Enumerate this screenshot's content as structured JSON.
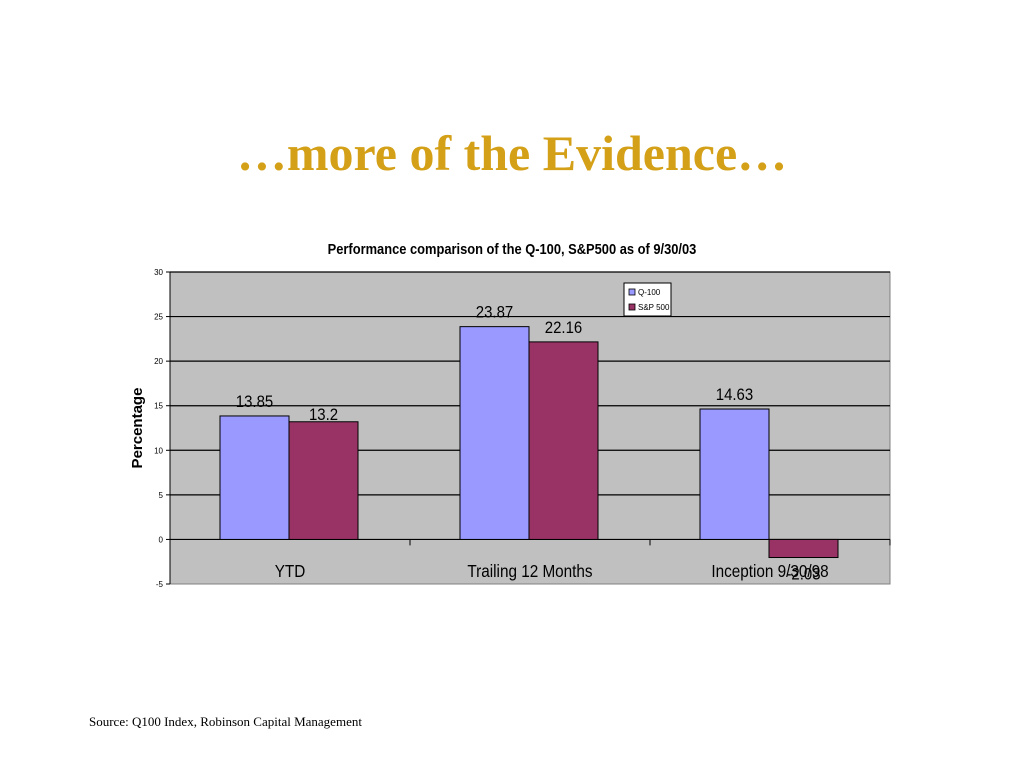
{
  "slide": {
    "title": "…more of the Evidence…",
    "source": "Source: Q100 Index, Robinson Capital Management"
  },
  "colors": {
    "title": "#d4a017",
    "plot_background": "#c0c0c0",
    "q100": "#9999ff",
    "sp500": "#993366"
  },
  "chart_data": {
    "type": "bar",
    "title": "Performance comparison of the Q-100, S&P500 as of 9/30/03",
    "xlabel": "",
    "ylabel": "Percentage",
    "ylim": [
      -5,
      30
    ],
    "yticks": [
      -5,
      0,
      5,
      10,
      15,
      20,
      25,
      30
    ],
    "grid": true,
    "legend_position": "top-right",
    "categories": [
      "YTD",
      "Trailing 12 Months",
      "Inception 9/30/98"
    ],
    "series": [
      {
        "name": "Q-100",
        "color": "#9999ff",
        "values": [
          13.85,
          23.87,
          14.63
        ],
        "labels": [
          "13.85",
          "23.87",
          "14.63"
        ]
      },
      {
        "name": "S&P 500",
        "color": "#993366",
        "values": [
          13.2,
          22.16,
          -2.03
        ],
        "labels": [
          "13.2",
          "22.16",
          "-2.03"
        ]
      }
    ]
  }
}
